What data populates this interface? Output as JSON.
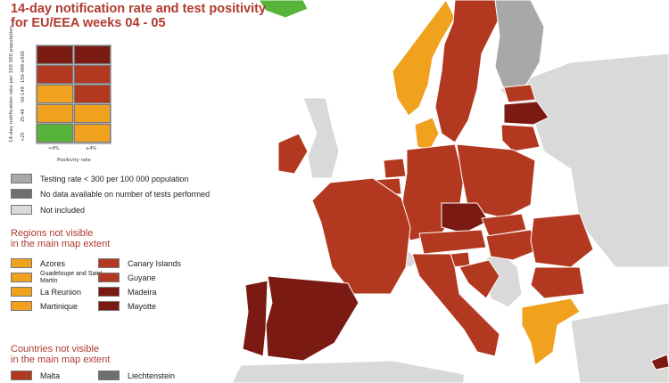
{
  "title_line1": "14-day notification rate and test positivity",
  "title_line2": "for EU/EEA weeks 04 - 05",
  "colors": {
    "dark_red": "#7a1a12",
    "red": "#b2391f",
    "orange": "#f0a21e",
    "green": "#58b33a",
    "grey_testing": "#a8a8a8",
    "grey_nodata": "#6f6f6f",
    "not_included": "#d9d9d9",
    "sea": "#ffffff"
  },
  "matrix": {
    "y_axis_label": "14-day notification rate per 100 000 population",
    "y_ticks": [
      "≥500",
      "150-499",
      "50-149",
      "25-49",
      "<25"
    ],
    "x_axis_label": "Positivity rate",
    "x_ticks": [
      "<4%",
      "≥4%"
    ],
    "cells": [
      [
        "dark_red",
        "dark_red"
      ],
      [
        "red",
        "red"
      ],
      [
        "orange",
        "red"
      ],
      [
        "orange",
        "orange"
      ],
      [
        "green",
        "orange"
      ]
    ]
  },
  "legend": {
    "testing_rate": "Testing rate < 300 per 100 000 population",
    "no_data": "No data available on number of tests performed",
    "not_included": "Not included"
  },
  "regions": {
    "heading_line1": "Regions not visible",
    "heading_line2": "in the main map extent",
    "left": [
      {
        "label": "Azores",
        "color": "orange"
      },
      {
        "label": "Guadeloupe and Saint Martin",
        "color": "orange"
      },
      {
        "label": "La Reunion",
        "color": "orange"
      },
      {
        "label": "Martinique",
        "color": "orange"
      }
    ],
    "right": [
      {
        "label": "Canary Islands",
        "color": "red"
      },
      {
        "label": "Guyane",
        "color": "red"
      },
      {
        "label": "Madeira",
        "color": "dark_red"
      },
      {
        "label": "Mayotte",
        "color": "dark_red"
      }
    ]
  },
  "countries": {
    "heading_line1": "Countries not visible",
    "heading_line2": "in the main map extent",
    "items": [
      {
        "label": "Malta",
        "color": "red"
      },
      {
        "label": "Liechtenstein",
        "color": "grey_nodata"
      }
    ]
  },
  "map_regions": [
    {
      "name": "Iceland",
      "color": "green"
    },
    {
      "name": "Norway",
      "color": "orange"
    },
    {
      "name": "Sweden",
      "color": "red"
    },
    {
      "name": "Finland",
      "color": "grey_testing"
    },
    {
      "name": "Estonia",
      "color": "red"
    },
    {
      "name": "Latvia",
      "color": "dark_red"
    },
    {
      "name": "Lithuania",
      "color": "red"
    },
    {
      "name": "Denmark",
      "color": "orange"
    },
    {
      "name": "Ireland",
      "color": "red"
    },
    {
      "name": "France",
      "color": "red"
    },
    {
      "name": "Spain",
      "color": "dark_red"
    },
    {
      "name": "Portugal",
      "color": "dark_red"
    },
    {
      "name": "Netherlands",
      "color": "red"
    },
    {
      "name": "Belgium",
      "color": "red"
    },
    {
      "name": "Germany",
      "color": "red"
    },
    {
      "name": "Poland",
      "color": "red"
    },
    {
      "name": "Czechia",
      "color": "dark_red"
    },
    {
      "name": "Slovakia",
      "color": "red"
    },
    {
      "name": "Austria",
      "color": "red"
    },
    {
      "name": "Hungary",
      "color": "red"
    },
    {
      "name": "Romania",
      "color": "red"
    },
    {
      "name": "Bulgaria",
      "color": "red"
    },
    {
      "name": "Italy",
      "color": "red"
    },
    {
      "name": "Slovenia",
      "color": "red"
    },
    {
      "name": "Croatia",
      "color": "red"
    },
    {
      "name": "Greece",
      "color": "orange"
    },
    {
      "name": "Cyprus",
      "color": "dark_red"
    }
  ]
}
